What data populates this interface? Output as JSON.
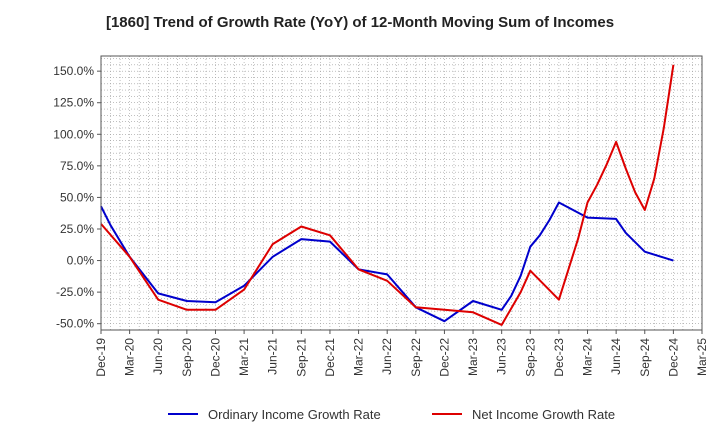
{
  "chart_data": {
    "type": "line",
    "title": "[1860]  Trend of Growth Rate (YoY) of 12-Month Moving Sum of Incomes",
    "xlabel": "",
    "ylabel": "",
    "x_tick_labels": [
      "Dec-19",
      "Mar-20",
      "Jun-20",
      "Sep-20",
      "Dec-20",
      "Mar-21",
      "Jun-21",
      "Sep-21",
      "Dec-21",
      "Mar-22",
      "Jun-22",
      "Sep-22",
      "Dec-22",
      "Mar-23",
      "Jun-23",
      "Sep-23",
      "Dec-23",
      "Mar-24",
      "Jun-24",
      "Sep-24",
      "Dec-24",
      "Mar-25"
    ],
    "y_ticks": [
      150,
      125,
      100,
      75,
      50,
      25,
      0,
      -25,
      -50
    ],
    "y_tick_labels": [
      "150.0%",
      "125.0%",
      "100.0%",
      "75.0%",
      "50.0%",
      "25.0%",
      "0.0%",
      "-25.0%",
      "-50.0%"
    ],
    "ylim": [
      -55,
      162
    ],
    "grid": true,
    "legend_position": "bottom",
    "series": [
      {
        "name": "Ordinary Income Growth Rate",
        "color": "#0000cc",
        "points": [
          [
            "Dec-19",
            43
          ],
          [
            "Jan-20",
            28
          ],
          [
            "Mar-20",
            3
          ],
          [
            "Jun-20",
            -26
          ],
          [
            "Sep-20",
            -32
          ],
          [
            "Dec-20",
            -33
          ],
          [
            "Mar-21",
            -20
          ],
          [
            "Jun-21",
            3
          ],
          [
            "Sep-21",
            17
          ],
          [
            "Dec-21",
            15
          ],
          [
            "Mar-22",
            -7
          ],
          [
            "Jun-22",
            -11
          ],
          [
            "Sep-22",
            -37
          ],
          [
            "Dec-22",
            -48
          ],
          [
            "Mar-23",
            -32
          ],
          [
            "Jun-23",
            -39
          ],
          [
            "Jul-23",
            -28
          ],
          [
            "Aug-23",
            -12
          ],
          [
            "Sep-23",
            11
          ],
          [
            "Oct-23",
            20
          ],
          [
            "Nov-23",
            32
          ],
          [
            "Dec-23",
            46
          ],
          [
            "Mar-24",
            34
          ],
          [
            "Jun-24",
            33
          ],
          [
            "Jul-24",
            22
          ],
          [
            "Sep-24",
            7
          ],
          [
            "Dec-24",
            0
          ]
        ]
      },
      {
        "name": "Net Income Growth Rate",
        "color": "#dd0000",
        "points": [
          [
            "Dec-19",
            29
          ],
          [
            "Mar-20",
            3
          ],
          [
            "Jun-20",
            -31
          ],
          [
            "Sep-20",
            -39
          ],
          [
            "Dec-20",
            -39
          ],
          [
            "Mar-21",
            -23
          ],
          [
            "Jun-21",
            13
          ],
          [
            "Sep-21",
            27
          ],
          [
            "Dec-21",
            20
          ],
          [
            "Mar-22",
            -7
          ],
          [
            "Jun-22",
            -16
          ],
          [
            "Sep-22",
            -37
          ],
          [
            "Dec-22",
            -39
          ],
          [
            "Mar-23",
            -41
          ],
          [
            "Jun-23",
            -51
          ],
          [
            "Aug-23",
            -25
          ],
          [
            "Sep-23",
            -8
          ],
          [
            "Dec-23",
            -31
          ],
          [
            "Feb-24",
            17
          ],
          [
            "Mar-24",
            46
          ],
          [
            "Apr-24",
            60
          ],
          [
            "May-24",
            76
          ],
          [
            "Jun-24",
            94
          ],
          [
            "Jul-24",
            73
          ],
          [
            "Aug-24",
            54
          ],
          [
            "Sep-24",
            40
          ],
          [
            "Oct-24",
            65
          ],
          [
            "Nov-24",
            105
          ],
          [
            "Dec-24",
            155
          ]
        ]
      }
    ]
  }
}
